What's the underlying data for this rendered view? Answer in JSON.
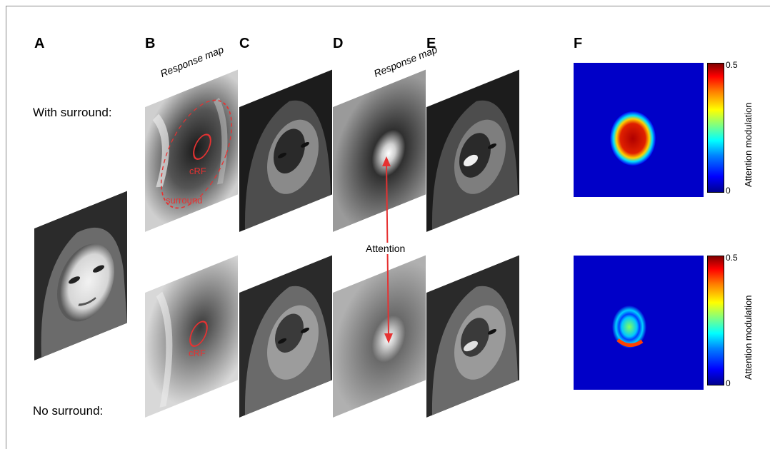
{
  "panels": {
    "a": "A",
    "b": "B",
    "c": "C",
    "d": "D",
    "e": "E",
    "f": "F"
  },
  "rows": {
    "top": "With surround:",
    "bottom": "No surround:"
  },
  "response_map_b": "Response map",
  "response_map_d": "Response map",
  "crf_top": "cRF",
  "surround": "surround",
  "crf_bottom": "cRF",
  "attention": "Attention",
  "colorbar": {
    "max": "0.5",
    "min": "0",
    "label": "Attention modulation"
  },
  "colors": {
    "annotation": "#e63232",
    "arrow": "#e63232"
  }
}
